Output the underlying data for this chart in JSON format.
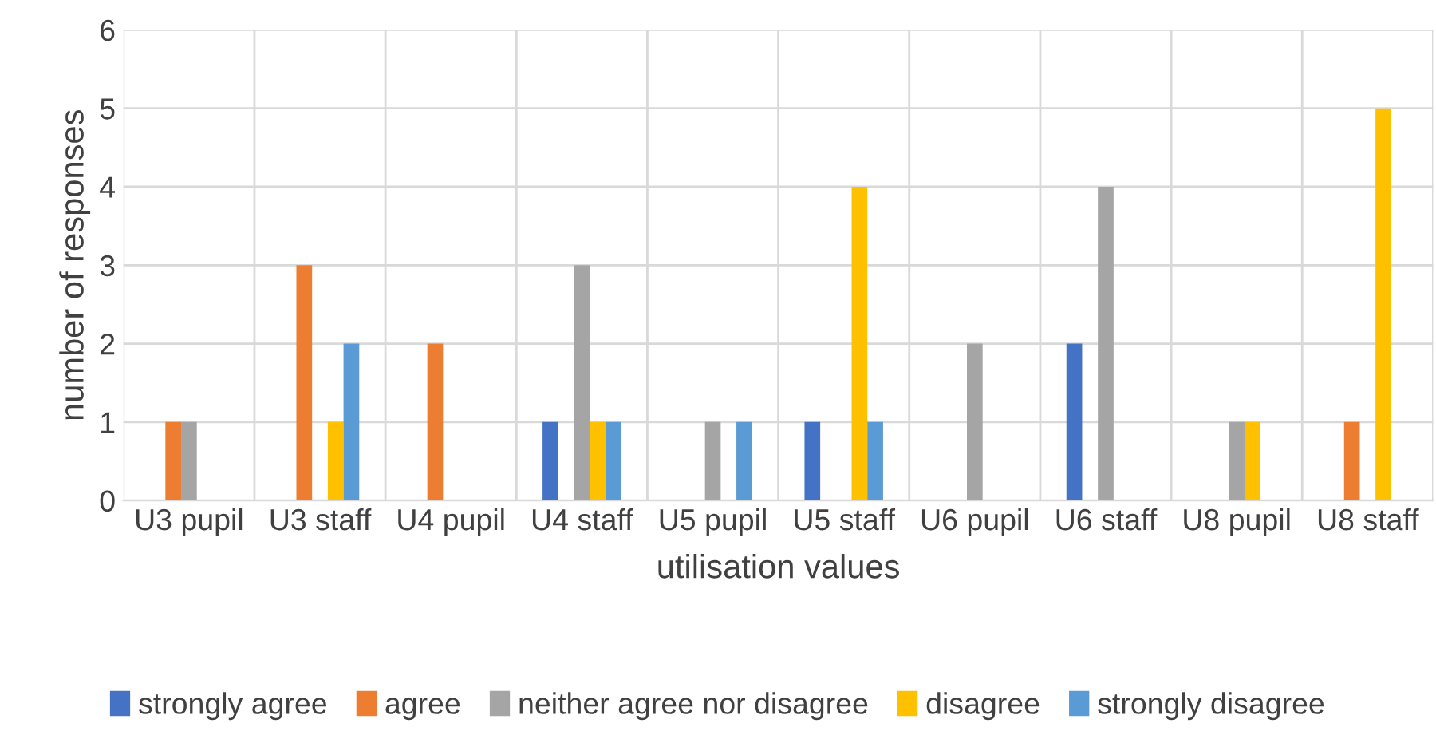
{
  "chart_data": {
    "type": "bar",
    "xlabel": "utilisation values",
    "ylabel": "number of responses",
    "categories": [
      "U3 pupil",
      "U3 staff",
      "U4 pupil",
      "U4 staff",
      "U5 pupil",
      "U5 staff",
      "U6 pupil",
      "U6 staff",
      "U8 pupil",
      "U8 staff"
    ],
    "series": [
      {
        "name": "strongly agree",
        "color": "#4472c4",
        "values": [
          0,
          0,
          0,
          1,
          0,
          1,
          0,
          2,
          0,
          0
        ]
      },
      {
        "name": "agree",
        "color": "#ed7d31",
        "values": [
          1,
          3,
          2,
          0,
          0,
          0,
          0,
          0,
          0,
          1
        ]
      },
      {
        "name": "neither agree nor disagree",
        "color": "#a5a5a5",
        "values": [
          1,
          0,
          0,
          3,
          1,
          0,
          2,
          4,
          1,
          0
        ]
      },
      {
        "name": "disagree",
        "color": "#ffc000",
        "values": [
          0,
          1,
          0,
          1,
          0,
          4,
          0,
          0,
          1,
          5
        ]
      },
      {
        "name": "strongly disagree",
        "color": "#5b9bd5",
        "values": [
          0,
          2,
          0,
          1,
          1,
          1,
          0,
          0,
          0,
          0
        ]
      }
    ],
    "ylim": [
      0,
      6
    ],
    "yticks": [
      0,
      1,
      2,
      3,
      4,
      5,
      6
    ],
    "grid": true,
    "legend": "bottom"
  }
}
